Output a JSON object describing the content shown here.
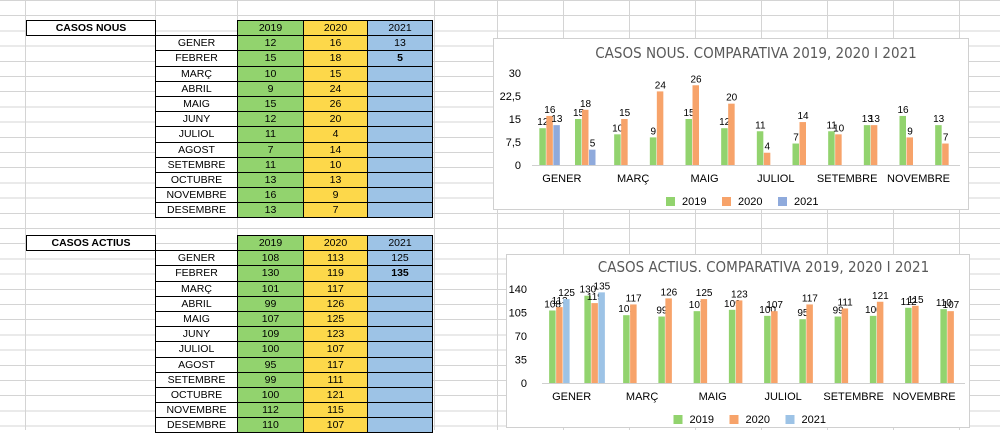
{
  "colors": {
    "y2019": "#92d36e",
    "y2020": "#f7a36a",
    "y2021_table": "#9dc3e6",
    "y2021_chart_new": "#8faadc",
    "y2021_chart_active": "#9dc3e6"
  },
  "tables": [
    {
      "title": "CASOS NOUS",
      "years": [
        "2019",
        "2020",
        "2021"
      ],
      "rows": [
        {
          "month": "GENER",
          "v2019": "12",
          "v2020": "16",
          "v2021": "13"
        },
        {
          "month": "FEBRER",
          "v2019": "15",
          "v2020": "18",
          "v2021": "5"
        },
        {
          "month": "MARÇ",
          "v2019": "10",
          "v2020": "15",
          "v2021": ""
        },
        {
          "month": "ABRIL",
          "v2019": "9",
          "v2020": "24",
          "v2021": ""
        },
        {
          "month": "MAIG",
          "v2019": "15",
          "v2020": "26",
          "v2021": ""
        },
        {
          "month": "JUNY",
          "v2019": "12",
          "v2020": "20",
          "v2021": ""
        },
        {
          "month": "JULIOL",
          "v2019": "11",
          "v2020": "4",
          "v2021": ""
        },
        {
          "month": "AGOST",
          "v2019": "7",
          "v2020": "14",
          "v2021": ""
        },
        {
          "month": "SETEMBRE",
          "v2019": "11",
          "v2020": "10",
          "v2021": ""
        },
        {
          "month": "OCTUBRE",
          "v2019": "13",
          "v2020": "13",
          "v2021": ""
        },
        {
          "month": "NOVEMBRE",
          "v2019": "16",
          "v2020": "9",
          "v2021": ""
        },
        {
          "month": "DESEMBRE",
          "v2019": "13",
          "v2020": "7",
          "v2021": ""
        }
      ]
    },
    {
      "title": "CASOS ACTIUS",
      "years": [
        "2019",
        "2020",
        "2021"
      ],
      "rows": [
        {
          "month": "GENER",
          "v2019": "108",
          "v2020": "113",
          "v2021": "125"
        },
        {
          "month": "FEBRER",
          "v2019": "130",
          "v2020": "119",
          "v2021": "135"
        },
        {
          "month": "MARÇ",
          "v2019": "101",
          "v2020": "117",
          "v2021": ""
        },
        {
          "month": "ABRIL",
          "v2019": "99",
          "v2020": "126",
          "v2021": ""
        },
        {
          "month": "MAIG",
          "v2019": "107",
          "v2020": "125",
          "v2021": ""
        },
        {
          "month": "JUNY",
          "v2019": "109",
          "v2020": "123",
          "v2021": ""
        },
        {
          "month": "JULIOL",
          "v2019": "100",
          "v2020": "107",
          "v2021": ""
        },
        {
          "month": "AGOST",
          "v2019": "95",
          "v2020": "117",
          "v2021": ""
        },
        {
          "month": "SETEMBRE",
          "v2019": "99",
          "v2020": "111",
          "v2021": ""
        },
        {
          "month": "OCTUBRE",
          "v2019": "100",
          "v2020": "121",
          "v2021": ""
        },
        {
          "month": "NOVEMBRE",
          "v2019": "112",
          "v2020": "115",
          "v2021": ""
        },
        {
          "month": "DESEMBRE",
          "v2019": "110",
          "v2020": "107",
          "v2021": ""
        }
      ]
    }
  ],
  "chart_data": [
    {
      "type": "bar",
      "title": "CASOS NOUS. COMPARATIVA 2019, 2020 I 2021",
      "categories": [
        "GENER",
        "FEBRER",
        "MARÇ",
        "ABRIL",
        "MAIG",
        "JUNY",
        "JULIOL",
        "AGOST",
        "SETEMBRE",
        "OCTUBRE",
        "NOVEMBRE",
        "DESEMBRE"
      ],
      "x_tick_labels": [
        "GENER",
        "MARÇ",
        "MAIG",
        "JULIOL",
        "SETEMBRE",
        "NOVEMBRE"
      ],
      "y_ticks": [
        "30",
        "22,5",
        "15",
        "7,5",
        "0"
      ],
      "ylim": [
        0,
        30
      ],
      "legend": [
        "2019",
        "2020",
        "2021"
      ],
      "series": [
        {
          "name": "2019",
          "values": [
            12,
            15,
            10,
            9,
            15,
            12,
            11,
            7,
            11,
            13,
            16,
            13
          ]
        },
        {
          "name": "2020",
          "values": [
            16,
            18,
            15,
            24,
            26,
            20,
            4,
            14,
            10,
            13,
            9,
            7
          ]
        },
        {
          "name": "2021",
          "values": [
            13,
            5,
            null,
            null,
            null,
            null,
            null,
            null,
            null,
            null,
            null,
            null
          ]
        }
      ]
    },
    {
      "type": "bar",
      "title": "CASOS ACTIUS. COMPARATIVA 2019, 2020 I 2021",
      "categories": [
        "GENER",
        "FEBRER",
        "MARÇ",
        "ABRIL",
        "MAIG",
        "JUNY",
        "JULIOL",
        "AGOST",
        "SETEMBRE",
        "OCTUBRE",
        "NOVEMBRE",
        "DESEMBRE"
      ],
      "x_tick_labels": [
        "GENER",
        "MARÇ",
        "MAIG",
        "JULIOL",
        "SETEMBRE",
        "NOVEMBRE"
      ],
      "y_ticks": [
        "140",
        "105",
        "70",
        "35",
        "0"
      ],
      "ylim": [
        0,
        140
      ],
      "legend": [
        "2019",
        "2020",
        "2021"
      ],
      "series": [
        {
          "name": "2019",
          "values": [
            108,
            130,
            101,
            99,
            107,
            109,
            100,
            95,
            99,
            100,
            112,
            110
          ]
        },
        {
          "name": "2020",
          "values": [
            113,
            119,
            117,
            126,
            125,
            123,
            107,
            117,
            111,
            121,
            115,
            107
          ]
        },
        {
          "name": "2021",
          "values": [
            125,
            135,
            null,
            null,
            null,
            null,
            null,
            null,
            null,
            null,
            null,
            null
          ]
        }
      ]
    }
  ]
}
